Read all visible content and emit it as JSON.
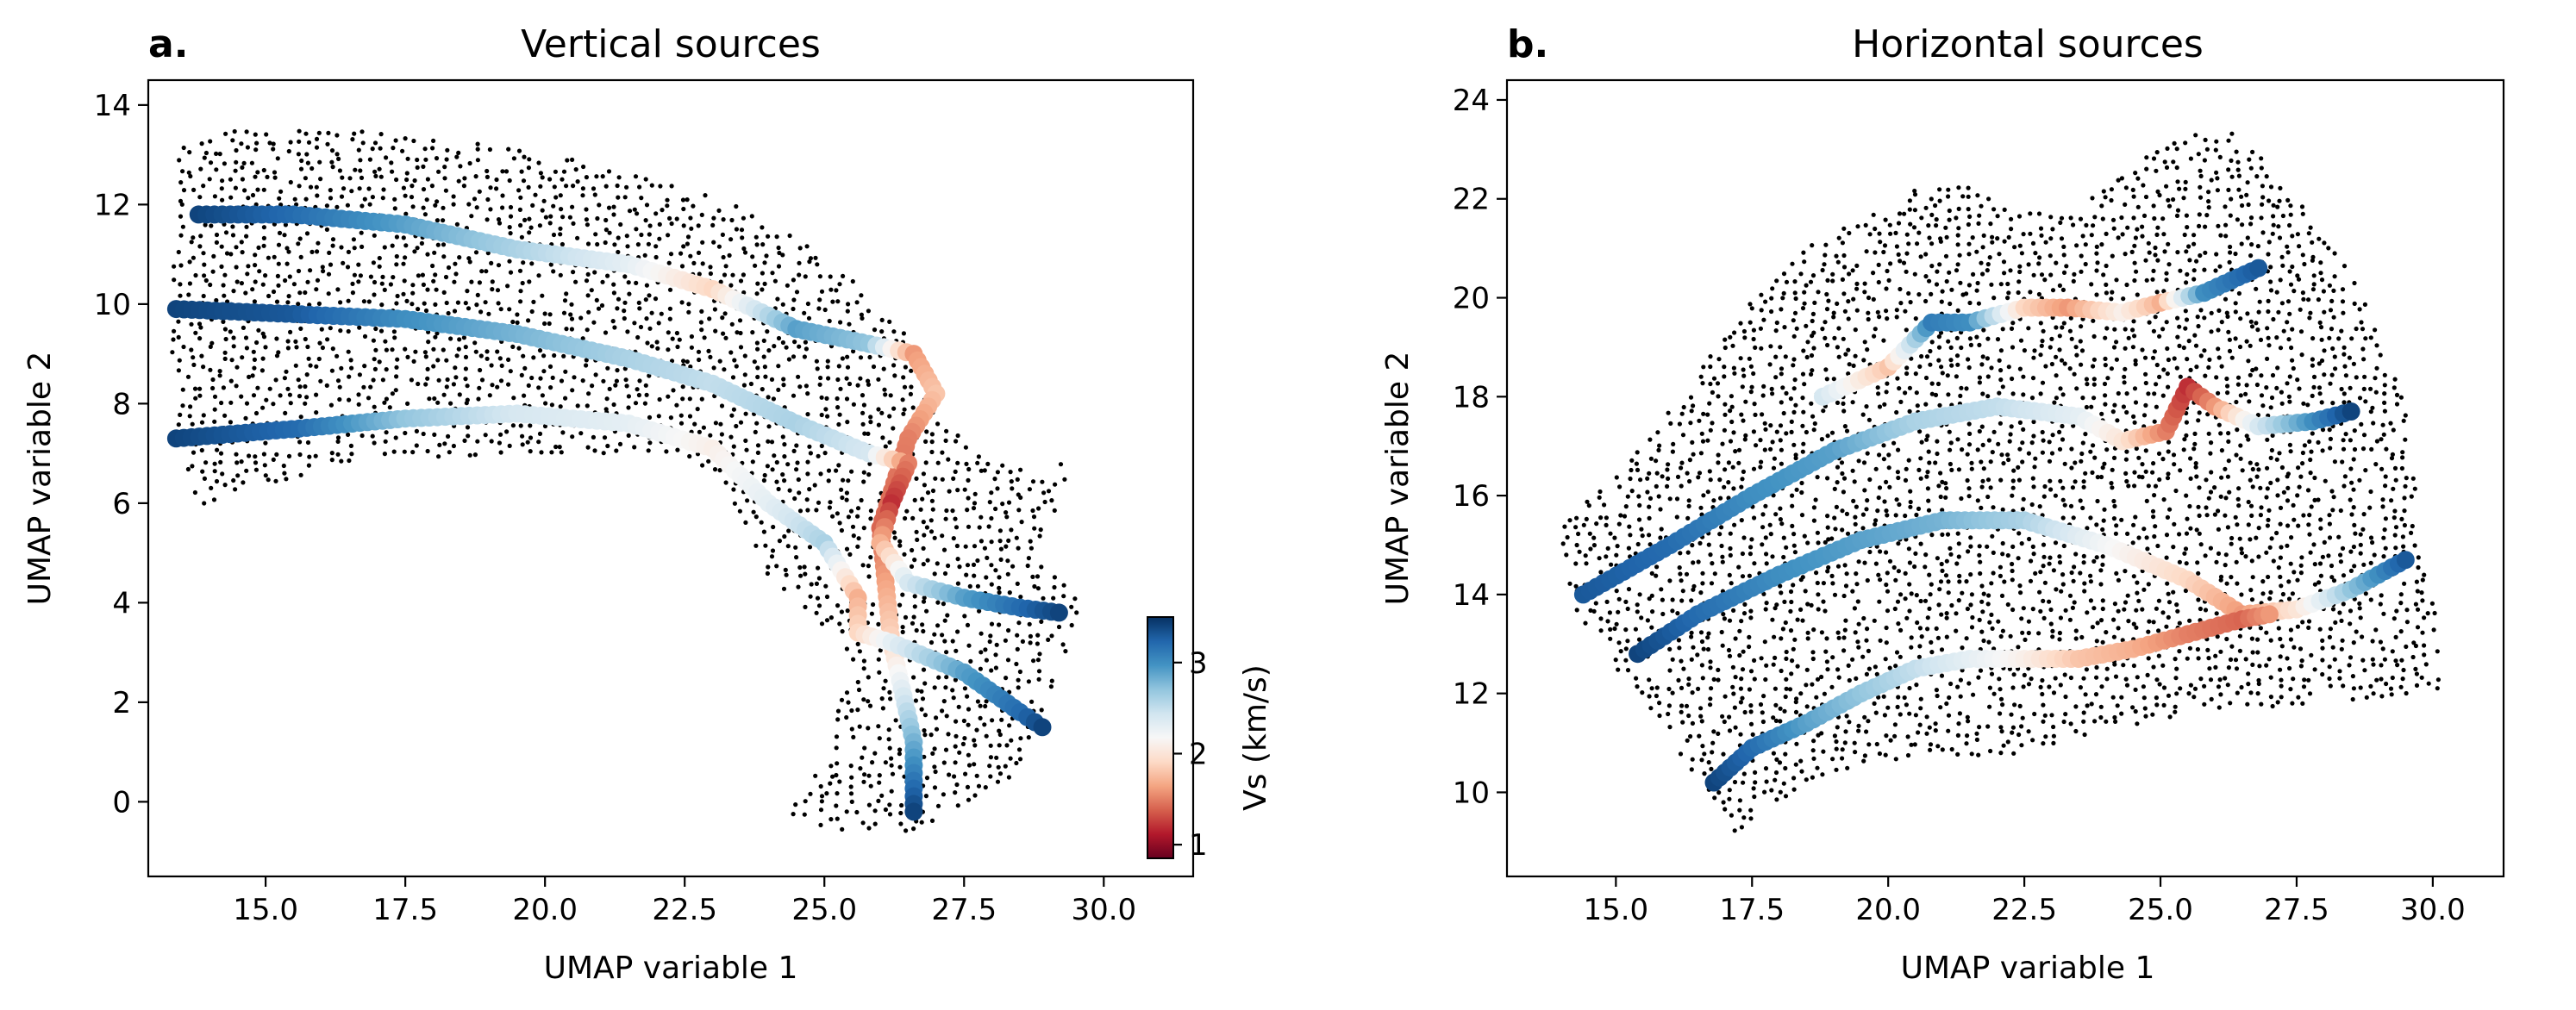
{
  "colorbar": {
    "label": "Vs (km/s)",
    "ticks": [
      1,
      2,
      3
    ],
    "range": [
      0.85,
      3.5
    ],
    "colormap": "RdBu",
    "stops": [
      "#67001f",
      "#b2182b",
      "#d6604d",
      "#f4a582",
      "#fddbc7",
      "#f7f7f7",
      "#d1e5f0",
      "#92c5de",
      "#4393c3",
      "#2166ac",
      "#053061"
    ]
  },
  "chart_data": [
    {
      "type": "scatter",
      "panel_label": "a.",
      "title": "Vertical sources",
      "xlabel": "UMAP variable 1",
      "ylabel": "UMAP variable 2",
      "xlim": [
        12.9,
        31.6
      ],
      "ylim": [
        -1.5,
        14.5
      ],
      "xticks": [
        "15.0",
        "17.5",
        "20.0",
        "22.5",
        "25.0",
        "27.5",
        "30.0"
      ],
      "yticks": [
        "0",
        "2",
        "4",
        "6",
        "8",
        "10",
        "12",
        "14"
      ],
      "background_cloud": {
        "color": "#000000",
        "outline": [
          [
            13.4,
            13.1
          ],
          [
            14.5,
            13.6
          ],
          [
            16.5,
            13.5
          ],
          [
            19.0,
            13.2
          ],
          [
            21.0,
            12.8
          ],
          [
            23.5,
            12.0
          ],
          [
            25.0,
            11.0
          ],
          [
            25.8,
            10.2
          ],
          [
            26.6,
            9.2
          ],
          [
            27.0,
            7.8
          ],
          [
            28.0,
            6.8
          ],
          [
            29.5,
            6.8
          ],
          [
            28.8,
            5.0
          ],
          [
            29.6,
            4.0
          ],
          [
            29.2,
            2.5
          ],
          [
            28.5,
            0.6
          ],
          [
            26.8,
            -0.6
          ],
          [
            25.3,
            -0.6
          ],
          [
            24.2,
            -0.3
          ],
          [
            25.2,
            1.0
          ],
          [
            25.3,
            3.2
          ],
          [
            24.0,
            4.5
          ],
          [
            23.5,
            5.8
          ],
          [
            22.5,
            7.0
          ],
          [
            20.0,
            7.0
          ],
          [
            16.5,
            6.8
          ],
          [
            13.8,
            5.9
          ],
          [
            13.3,
            8.0
          ]
        ]
      },
      "series": [
        {
          "x": [
            13.8,
            15.5,
            17.5,
            19.5,
            21.5,
            23.0,
            24.5,
            25.8,
            26.6,
            27.0,
            26.5,
            26.0,
            26.2,
            26.6,
            26.6
          ],
          "y": [
            11.8,
            11.8,
            11.6,
            11.1,
            10.8,
            10.3,
            9.5,
            9.2,
            9.0,
            8.2,
            7.3,
            5.5,
            3.2,
            1.2,
            -0.2
          ],
          "vs": [
            3.4,
            3.2,
            2.9,
            2.6,
            2.3,
            1.9,
            2.9,
            2.7,
            1.6,
            1.8,
            1.5,
            1.4,
            1.9,
            2.8,
            3.4
          ]
        },
        {
          "x": [
            13.4,
            15.5,
            17.5,
            19.5,
            21.5,
            23.0,
            24.5,
            25.8,
            26.5,
            26.2,
            26.0,
            26.5,
            27.5,
            28.5,
            29.2
          ],
          "y": [
            9.9,
            9.8,
            9.7,
            9.4,
            8.9,
            8.4,
            7.6,
            7.0,
            6.8,
            6.0,
            5.2,
            4.4,
            4.1,
            3.9,
            3.8
          ],
          "vs": [
            3.4,
            3.3,
            3.0,
            2.8,
            2.6,
            2.5,
            2.6,
            2.4,
            1.5,
            1.2,
            1.7,
            2.4,
            2.9,
            3.2,
            3.4
          ]
        },
        {
          "x": [
            13.4,
            15.6,
            17.5,
            19.5,
            21.5,
            23.0,
            24.0,
            25.0,
            25.6,
            25.6,
            26.2,
            27.5,
            28.5,
            28.9
          ],
          "y": [
            7.3,
            7.5,
            7.7,
            7.8,
            7.6,
            7.1,
            6.0,
            5.2,
            4.1,
            3.4,
            3.2,
            2.6,
            1.8,
            1.5
          ],
          "vs": [
            3.4,
            3.2,
            2.7,
            2.4,
            2.3,
            2.1,
            2.3,
            2.6,
            1.7,
            1.9,
            2.3,
            2.9,
            3.2,
            3.4
          ]
        }
      ]
    },
    {
      "type": "scatter",
      "panel_label": "b.",
      "title": "Horizontal sources",
      "xlabel": "UMAP variable 1",
      "ylabel": "UMAP variable 2",
      "xlim": [
        13.0,
        31.3
      ],
      "ylim": [
        8.3,
        24.4
      ],
      "xticks": [
        "15.0",
        "17.5",
        "20.0",
        "22.5",
        "25.0",
        "27.5",
        "30.0"
      ],
      "yticks": [
        "10",
        "12",
        "14",
        "16",
        "18",
        "20",
        "22",
        "24"
      ],
      "background_cloud": {
        "color": "#000000",
        "outline": [
          [
            13.9,
            15.2
          ],
          [
            15.0,
            16.5
          ],
          [
            16.5,
            18.5
          ],
          [
            17.5,
            20.0
          ],
          [
            18.8,
            21.3
          ],
          [
            20.5,
            22.2
          ],
          [
            21.5,
            22.3
          ],
          [
            22.5,
            21.8
          ],
          [
            23.3,
            21.6
          ],
          [
            24.0,
            22.4
          ],
          [
            25.5,
            23.3
          ],
          [
            26.3,
            23.5
          ],
          [
            27.2,
            22.4
          ],
          [
            28.5,
            20.6
          ],
          [
            29.5,
            18.0
          ],
          [
            29.8,
            15.0
          ],
          [
            30.3,
            12.1
          ],
          [
            28.0,
            11.8
          ],
          [
            25.0,
            11.5
          ],
          [
            22.5,
            10.8
          ],
          [
            20.0,
            10.6
          ],
          [
            18.5,
            10.2
          ],
          [
            17.2,
            9.1
          ],
          [
            16.7,
            10.0
          ],
          [
            15.7,
            11.5
          ],
          [
            14.8,
            12.7
          ],
          [
            14.2,
            13.8
          ]
        ]
      },
      "series": [
        {
          "x": [
            18.8,
            20.0,
            20.8,
            21.5,
            22.5,
            23.3,
            24.3,
            25.0,
            25.8,
            26.8
          ],
          "y": [
            18.0,
            18.6,
            19.5,
            19.5,
            19.8,
            19.8,
            19.7,
            19.9,
            20.1,
            20.6
          ],
          "vs": [
            2.4,
            1.8,
            3.1,
            3.0,
            1.9,
            1.6,
            2.1,
            1.7,
            3.0,
            3.3
          ]
        },
        {
          "x": [
            14.4,
            16.0,
            17.5,
            19.0,
            20.5,
            22.0,
            23.5,
            24.3,
            25.1,
            25.5,
            26.0,
            26.8,
            27.8,
            28.5
          ],
          "y": [
            14.0,
            15.0,
            16.0,
            16.9,
            17.5,
            17.8,
            17.6,
            17.1,
            17.3,
            18.2,
            17.8,
            17.4,
            17.5,
            17.7
          ],
          "vs": [
            3.3,
            3.2,
            3.0,
            2.9,
            2.6,
            2.5,
            2.3,
            2.0,
            1.5,
            1.2,
            1.6,
            2.4,
            3.0,
            3.4
          ]
        },
        {
          "x": [
            15.4,
            16.5,
            18.0,
            19.5,
            21.0,
            22.5,
            24.0,
            25.5,
            26.5,
            27.5,
            28.5,
            29.5
          ],
          "y": [
            12.8,
            13.6,
            14.4,
            15.1,
            15.5,
            15.5,
            15.0,
            14.3,
            13.6,
            13.7,
            14.1,
            14.7
          ],
          "vs": [
            3.4,
            3.2,
            3.0,
            2.9,
            2.8,
            2.6,
            2.2,
            1.9,
            1.6,
            2.0,
            2.7,
            3.3
          ]
        },
        {
          "x": [
            16.8,
            17.5,
            18.5,
            19.5,
            20.5,
            21.5,
            22.5,
            23.5,
            24.5,
            25.5,
            26.5,
            27.0
          ],
          "y": [
            10.2,
            10.9,
            11.4,
            12.0,
            12.5,
            12.7,
            12.7,
            12.7,
            12.9,
            13.2,
            13.5,
            13.6
          ],
          "vs": [
            3.4,
            3.2,
            2.9,
            2.7,
            2.5,
            2.3,
            2.1,
            1.8,
            1.7,
            1.5,
            1.4,
            1.6
          ]
        }
      ]
    }
  ]
}
